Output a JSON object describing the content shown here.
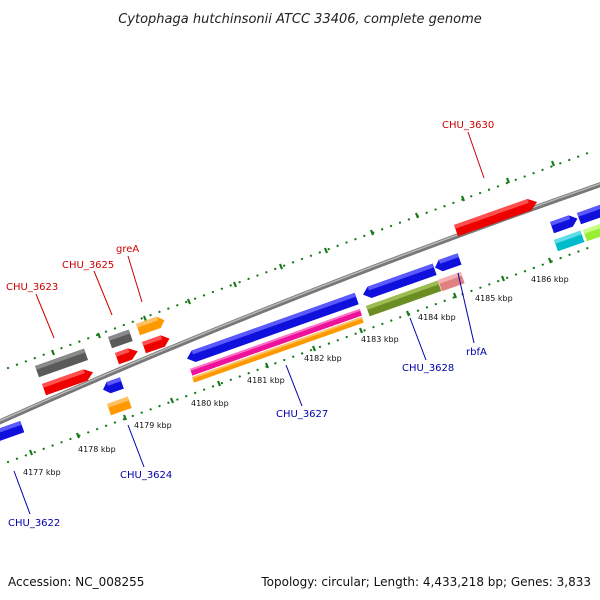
{
  "title": "Cytophaga hutchinsonii ATCC 33406, complete genome",
  "footer": {
    "accession": "Accession: NC_008255",
    "topology": "Topology: circular; Length: 4,433,218 bp; Genes: 3,833"
  },
  "ticks": [
    {
      "label": "4177 kbp"
    },
    {
      "label": "4178 kbp"
    },
    {
      "label": "4179 kbp"
    },
    {
      "label": "4180 kbp"
    },
    {
      "label": "4181 kbp"
    },
    {
      "label": "4182 kbp"
    },
    {
      "label": "4183 kbp"
    },
    {
      "label": "4184 kbp"
    },
    {
      "label": "4185 kbp"
    },
    {
      "label": "4186 kbp"
    }
  ],
  "gene_labels": {
    "chu3623": "CHU_3623",
    "chu3625": "CHU_3625",
    "grea": "greA",
    "chu3630": "CHU_3630",
    "chu3622": "CHU_3622",
    "chu3624": "CHU_3624",
    "chu3627": "CHU_3627",
    "chu3628": "CHU_3628",
    "rbfa": "rbfA"
  },
  "colors": {
    "forward_label": "#cc0000",
    "reverse_label": "#0000aa",
    "backbone": "#888888",
    "tick": "#1a7a1a"
  }
}
